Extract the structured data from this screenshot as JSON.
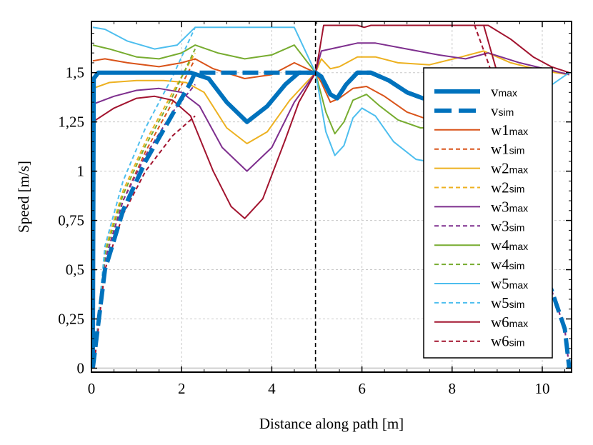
{
  "chart_data": {
    "type": "line",
    "title": "",
    "xlabel": "Distance along path [m]",
    "ylabel": "Speed [m/s]",
    "xlim": [
      0,
      10.65
    ],
    "ylim": [
      -0.02,
      1.76
    ],
    "xticks": [
      0,
      2,
      4,
      6,
      8,
      10
    ],
    "xtick_labels": [
      "0",
      "2",
      "4",
      "6",
      "8",
      "10"
    ],
    "yticks": [
      0,
      0.25,
      0.5,
      0.75,
      1,
      1.25,
      1.5
    ],
    "ytick_labels": [
      "0",
      "0,25",
      "0,5",
      "0,75",
      "1",
      "1,25",
      "1,5"
    ],
    "grid": true,
    "legend_position": "right",
    "vertical_marker": {
      "x": 4.97,
      "style": "dashed",
      "color": "#000000"
    },
    "series": [
      {
        "name": "v",
        "sub": "max",
        "color": "#0072BD",
        "style": "solid",
        "width": 6,
        "points": [
          [
            0.03,
            0
          ],
          [
            0.05,
            1.47
          ],
          [
            0.15,
            1.5
          ],
          [
            2.2,
            1.5
          ],
          [
            2.6,
            1.47
          ],
          [
            3.0,
            1.35
          ],
          [
            3.45,
            1.25
          ],
          [
            3.9,
            1.33
          ],
          [
            4.3,
            1.44
          ],
          [
            4.6,
            1.5
          ],
          [
            4.97,
            1.5
          ],
          [
            5.1,
            1.48
          ],
          [
            5.3,
            1.39
          ],
          [
            5.45,
            1.37
          ],
          [
            5.65,
            1.44
          ],
          [
            5.9,
            1.5
          ],
          [
            6.2,
            1.5
          ],
          [
            6.6,
            1.46
          ],
          [
            7.0,
            1.4
          ],
          [
            7.35,
            1.37
          ],
          [
            7.8,
            1.37
          ]
        ]
      },
      {
        "name": "v",
        "sub": "sim",
        "color": "#0072BD",
        "style": "dashed",
        "width": 6,
        "points": [
          [
            0.03,
            0
          ],
          [
            0.3,
            0.5
          ],
          [
            0.7,
            0.8
          ],
          [
            1.2,
            1.05
          ],
          [
            1.7,
            1.25
          ],
          [
            2.2,
            1.45
          ],
          [
            2.3,
            1.5
          ],
          [
            4.6,
            1.5
          ],
          [
            4.97,
            1.5
          ],
          [
            5.1,
            1.48
          ],
          [
            5.3,
            1.39
          ],
          [
            5.45,
            1.37
          ],
          [
            5.65,
            1.44
          ],
          [
            5.9,
            1.5
          ],
          [
            6.2,
            1.5
          ],
          [
            6.6,
            1.46
          ],
          [
            7.0,
            1.4
          ],
          [
            7.35,
            1.37
          ],
          [
            7.8,
            1.37
          ]
        ]
      },
      {
        "name": "w1",
        "sub": "max",
        "color": "#D95319",
        "style": "solid",
        "width": 2,
        "points": [
          [
            0.03,
            1.56
          ],
          [
            0.3,
            1.57
          ],
          [
            0.8,
            1.55
          ],
          [
            1.5,
            1.53
          ],
          [
            2.0,
            1.55
          ],
          [
            2.3,
            1.57
          ],
          [
            2.7,
            1.52
          ],
          [
            3.4,
            1.47
          ],
          [
            4.0,
            1.49
          ],
          [
            4.5,
            1.55
          ],
          [
            4.97,
            1.5
          ],
          [
            5.1,
            1.45
          ],
          [
            5.3,
            1.35
          ],
          [
            5.5,
            1.37
          ],
          [
            5.8,
            1.42
          ],
          [
            6.1,
            1.43
          ],
          [
            6.5,
            1.38
          ],
          [
            7.0,
            1.3
          ],
          [
            7.5,
            1.26
          ],
          [
            7.8,
            1.25
          ]
        ]
      },
      {
        "name": "w1",
        "sub": "sim",
        "color": "#D95319",
        "style": "dashed",
        "width": 2,
        "points": [
          [
            0.05,
            0
          ],
          [
            0.3,
            0.55
          ],
          [
            0.7,
            0.85
          ],
          [
            1.2,
            1.1
          ],
          [
            1.8,
            1.35
          ],
          [
            2.3,
            1.57
          ]
        ]
      },
      {
        "name": "w2",
        "sub": "max",
        "color": "#EDB120",
        "style": "solid",
        "width": 2,
        "points": [
          [
            0.03,
            1.42
          ],
          [
            0.4,
            1.45
          ],
          [
            1.0,
            1.46
          ],
          [
            1.6,
            1.46
          ],
          [
            2.1,
            1.45
          ],
          [
            2.5,
            1.4
          ],
          [
            3.0,
            1.22
          ],
          [
            3.45,
            1.14
          ],
          [
            3.9,
            1.2
          ],
          [
            4.4,
            1.36
          ],
          [
            4.97,
            1.5
          ],
          [
            5.1,
            1.57
          ],
          [
            5.3,
            1.52
          ],
          [
            5.5,
            1.53
          ],
          [
            5.9,
            1.58
          ],
          [
            6.3,
            1.58
          ],
          [
            6.8,
            1.55
          ],
          [
            7.5,
            1.54
          ],
          [
            8.2,
            1.58
          ],
          [
            8.7,
            1.61
          ],
          [
            9.3,
            1.55
          ],
          [
            10.0,
            1.51
          ],
          [
            10.6,
            1.49
          ]
        ]
      },
      {
        "name": "w2",
        "sub": "sim",
        "color": "#EDB120",
        "style": "dashed",
        "width": 2,
        "points": [
          [
            0.05,
            0
          ],
          [
            0.3,
            0.6
          ],
          [
            0.7,
            0.9
          ],
          [
            1.2,
            1.15
          ],
          [
            1.8,
            1.4
          ],
          [
            2.3,
            1.6
          ]
        ]
      },
      {
        "name": "w3",
        "sub": "max",
        "color": "#7E2F8E",
        "style": "solid",
        "width": 2,
        "points": [
          [
            0.03,
            1.34
          ],
          [
            0.5,
            1.38
          ],
          [
            1.0,
            1.41
          ],
          [
            1.5,
            1.42
          ],
          [
            2.0,
            1.4
          ],
          [
            2.4,
            1.33
          ],
          [
            2.9,
            1.12
          ],
          [
            3.45,
            1.0
          ],
          [
            4.0,
            1.12
          ],
          [
            4.5,
            1.35
          ],
          [
            4.97,
            1.5
          ],
          [
            5.1,
            1.61
          ],
          [
            5.5,
            1.63
          ],
          [
            5.9,
            1.65
          ],
          [
            6.3,
            1.65
          ],
          [
            7.0,
            1.62
          ],
          [
            7.7,
            1.59
          ],
          [
            8.3,
            1.57
          ],
          [
            8.8,
            1.6
          ],
          [
            9.5,
            1.55
          ],
          [
            10.6,
            1.49
          ]
        ]
      },
      {
        "name": "w3",
        "sub": "sim",
        "color": "#7E2F8E",
        "style": "dashed",
        "width": 2,
        "points": [
          [
            0.05,
            0
          ],
          [
            0.3,
            0.55
          ],
          [
            0.7,
            0.85
          ],
          [
            1.2,
            1.08
          ],
          [
            1.8,
            1.3
          ],
          [
            2.3,
            1.44
          ]
        ]
      },
      {
        "name": "w4",
        "sub": "max",
        "color": "#77AC30",
        "style": "solid",
        "width": 2,
        "points": [
          [
            0.03,
            1.64
          ],
          [
            0.4,
            1.62
          ],
          [
            1.0,
            1.58
          ],
          [
            1.5,
            1.57
          ],
          [
            2.0,
            1.6
          ],
          [
            2.3,
            1.64
          ],
          [
            2.8,
            1.6
          ],
          [
            3.4,
            1.57
          ],
          [
            4.0,
            1.59
          ],
          [
            4.5,
            1.64
          ],
          [
            4.97,
            1.5
          ],
          [
            5.2,
            1.3
          ],
          [
            5.4,
            1.19
          ],
          [
            5.6,
            1.25
          ],
          [
            5.8,
            1.36
          ],
          [
            6.1,
            1.39
          ],
          [
            6.4,
            1.33
          ],
          [
            6.8,
            1.26
          ],
          [
            7.3,
            1.22
          ],
          [
            7.8,
            1.22
          ]
        ]
      },
      {
        "name": "w4",
        "sub": "sim",
        "color": "#77AC30",
        "style": "dashed",
        "width": 2,
        "points": [
          [
            0.05,
            0
          ],
          [
            0.3,
            0.58
          ],
          [
            0.7,
            0.88
          ],
          [
            1.2,
            1.13
          ],
          [
            1.8,
            1.38
          ],
          [
            2.3,
            1.62
          ]
        ]
      },
      {
        "name": "w5",
        "sub": "max",
        "color": "#4DBEEE",
        "style": "solid",
        "width": 2,
        "points": [
          [
            0.03,
            1.73
          ],
          [
            0.3,
            1.72
          ],
          [
            0.8,
            1.66
          ],
          [
            1.4,
            1.62
          ],
          [
            1.9,
            1.64
          ],
          [
            2.3,
            1.73
          ],
          [
            4.5,
            1.73
          ],
          [
            4.97,
            1.5
          ],
          [
            5.2,
            1.2
          ],
          [
            5.4,
            1.08
          ],
          [
            5.6,
            1.13
          ],
          [
            5.8,
            1.27
          ],
          [
            6.0,
            1.32
          ],
          [
            6.3,
            1.28
          ],
          [
            6.7,
            1.15
          ],
          [
            7.2,
            1.06
          ],
          [
            7.7,
            1.04
          ],
          [
            10.6,
            1.5
          ]
        ]
      },
      {
        "name": "w5",
        "sub": "sim",
        "color": "#4DBEEE",
        "style": "dashed",
        "width": 2,
        "points": [
          [
            0.05,
            0
          ],
          [
            0.3,
            0.62
          ],
          [
            0.7,
            0.95
          ],
          [
            1.2,
            1.22
          ],
          [
            1.8,
            1.48
          ],
          [
            2.3,
            1.73
          ]
        ]
      },
      {
        "name": "w6",
        "sub": "max",
        "color": "#A2142F",
        "style": "solid",
        "width": 2,
        "points": [
          [
            0.03,
            1.25
          ],
          [
            0.5,
            1.32
          ],
          [
            1.0,
            1.37
          ],
          [
            1.4,
            1.38
          ],
          [
            1.8,
            1.36
          ],
          [
            2.2,
            1.28
          ],
          [
            2.7,
            1.0
          ],
          [
            3.1,
            0.82
          ],
          [
            3.4,
            0.76
          ],
          [
            3.8,
            0.86
          ],
          [
            4.3,
            1.16
          ],
          [
            4.6,
            1.35
          ],
          [
            4.97,
            1.5
          ],
          [
            5.05,
            1.6
          ],
          [
            5.15,
            1.74
          ],
          [
            5.9,
            1.74
          ],
          [
            6.05,
            1.73
          ],
          [
            6.2,
            1.74
          ],
          [
            8.8,
            1.74
          ],
          [
            9.3,
            1.67
          ],
          [
            9.8,
            1.58
          ],
          [
            10.2,
            1.53
          ],
          [
            10.6,
            1.5
          ]
        ]
      },
      {
        "name": "w6",
        "sub": "sim",
        "color": "#A2142F",
        "style": "dashed",
        "width": 2,
        "points": [
          [
            0.05,
            0
          ],
          [
            0.3,
            0.5
          ],
          [
            0.7,
            0.78
          ],
          [
            1.2,
            1.0
          ],
          [
            1.8,
            1.18
          ],
          [
            2.3,
            1.28
          ]
        ]
      }
    ]
  }
}
